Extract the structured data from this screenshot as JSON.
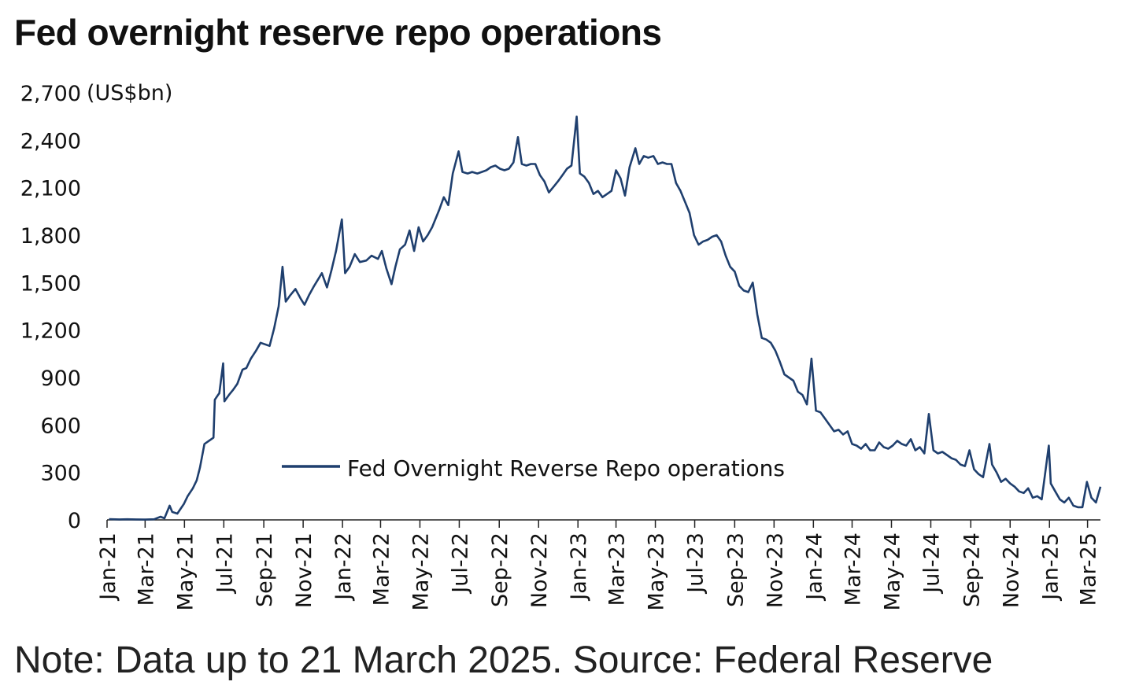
{
  "chart_data": {
    "type": "line",
    "title": "Fed overnight reserve repo operations",
    "ylabel": "(US$bn)",
    "ylim": [
      0,
      2700
    ],
    "yticks": [
      "0",
      "300",
      "600",
      "900",
      "1,200",
      "1,500",
      "1,800",
      "2,100",
      "2,400",
      "2,700"
    ],
    "xticks": [
      "Jan-21",
      "Mar-21",
      "May-21",
      "Jul-21",
      "Sep-21",
      "Nov-21",
      "Jan-22",
      "Mar-22",
      "May-22",
      "Jul-22",
      "Sep-22",
      "Nov-22",
      "Jan-23",
      "Mar-23",
      "May-23",
      "Jul-23",
      "Sep-23",
      "Nov-23",
      "Jan-24",
      "Mar-24",
      "May-24",
      "Jul-24",
      "Sep-24",
      "Nov-24",
      "Jan-25",
      "Mar-25"
    ],
    "grid": false,
    "legend_position": "center",
    "series": [
      {
        "name": "Fed Overnight Reverse Repo operations",
        "color": "#1f3f6e",
        "points": [
          [
            "2021-01-04",
            5
          ],
          [
            "2021-01-20",
            3
          ],
          [
            "2021-02-01",
            4
          ],
          [
            "2021-02-15",
            3
          ],
          [
            "2021-03-01",
            2
          ],
          [
            "2021-03-15",
            4
          ],
          [
            "2021-03-25",
            20
          ],
          [
            "2021-03-31",
            10
          ],
          [
            "2021-04-08",
            90
          ],
          [
            "2021-04-12",
            50
          ],
          [
            "2021-04-20",
            40
          ],
          [
            "2021-04-30",
            100
          ],
          [
            "2021-05-06",
            150
          ],
          [
            "2021-05-14",
            200
          ],
          [
            "2021-05-20",
            250
          ],
          [
            "2021-05-25",
            330
          ],
          [
            "2021-06-01",
            480
          ],
          [
            "2021-06-08",
            500
          ],
          [
            "2021-06-15",
            520
          ],
          [
            "2021-06-17",
            760
          ],
          [
            "2021-06-22",
            790
          ],
          [
            "2021-06-24",
            800
          ],
          [
            "2021-06-30",
            990
          ],
          [
            "2021-07-02",
            750
          ],
          [
            "2021-07-09",
            790
          ],
          [
            "2021-07-15",
            820
          ],
          [
            "2021-07-22",
            860
          ],
          [
            "2021-07-30",
            950
          ],
          [
            "2021-08-05",
            960
          ],
          [
            "2021-08-12",
            1020
          ],
          [
            "2021-08-20",
            1070
          ],
          [
            "2021-08-27",
            1120
          ],
          [
            "2021-09-03",
            1110
          ],
          [
            "2021-09-10",
            1100
          ],
          [
            "2021-09-17",
            1210
          ],
          [
            "2021-09-24",
            1350
          ],
          [
            "2021-09-30",
            1600
          ],
          [
            "2021-10-05",
            1380
          ],
          [
            "2021-10-12",
            1420
          ],
          [
            "2021-10-20",
            1460
          ],
          [
            "2021-10-28",
            1400
          ],
          [
            "2021-11-03",
            1360
          ],
          [
            "2021-11-10",
            1420
          ],
          [
            "2021-11-18",
            1480
          ],
          [
            "2021-11-30",
            1560
          ],
          [
            "2021-12-08",
            1470
          ],
          [
            "2021-12-15",
            1580
          ],
          [
            "2021-12-22",
            1700
          ],
          [
            "2021-12-31",
            1900
          ],
          [
            "2022-01-05",
            1560
          ],
          [
            "2022-01-12",
            1600
          ],
          [
            "2022-01-20",
            1680
          ],
          [
            "2022-01-28",
            1630
          ],
          [
            "2022-02-07",
            1640
          ],
          [
            "2022-02-15",
            1670
          ],
          [
            "2022-02-25",
            1650
          ],
          [
            "2022-03-03",
            1700
          ],
          [
            "2022-03-10",
            1590
          ],
          [
            "2022-03-18",
            1490
          ],
          [
            "2022-03-24",
            1600
          ],
          [
            "2022-03-31",
            1710
          ],
          [
            "2022-04-08",
            1740
          ],
          [
            "2022-04-15",
            1830
          ],
          [
            "2022-04-22",
            1700
          ],
          [
            "2022-04-29",
            1850
          ],
          [
            "2022-05-06",
            1760
          ],
          [
            "2022-05-13",
            1800
          ],
          [
            "2022-05-20",
            1850
          ],
          [
            "2022-05-31",
            1960
          ],
          [
            "2022-06-07",
            2040
          ],
          [
            "2022-06-14",
            1990
          ],
          [
            "2022-06-21",
            2190
          ],
          [
            "2022-06-30",
            2330
          ],
          [
            "2022-07-06",
            2200
          ],
          [
            "2022-07-14",
            2190
          ],
          [
            "2022-07-21",
            2200
          ],
          [
            "2022-07-29",
            2190
          ],
          [
            "2022-08-05",
            2200
          ],
          [
            "2022-08-12",
            2210
          ],
          [
            "2022-08-19",
            2230
          ],
          [
            "2022-08-26",
            2240
          ],
          [
            "2022-09-02",
            2220
          ],
          [
            "2022-09-09",
            2210
          ],
          [
            "2022-09-16",
            2220
          ],
          [
            "2022-09-23",
            2260
          ],
          [
            "2022-09-30",
            2420
          ],
          [
            "2022-10-06",
            2250
          ],
          [
            "2022-10-13",
            2240
          ],
          [
            "2022-10-20",
            2250
          ],
          [
            "2022-10-27",
            2250
          ],
          [
            "2022-11-03",
            2180
          ],
          [
            "2022-11-10",
            2140
          ],
          [
            "2022-11-17",
            2070
          ],
          [
            "2022-11-25",
            2110
          ],
          [
            "2022-12-01",
            2140
          ],
          [
            "2022-12-08",
            2180
          ],
          [
            "2022-12-15",
            2220
          ],
          [
            "2022-12-22",
            2240
          ],
          [
            "2022-12-30",
            2550
          ],
          [
            "2023-01-04",
            2190
          ],
          [
            "2023-01-11",
            2170
          ],
          [
            "2023-01-18",
            2130
          ],
          [
            "2023-01-25",
            2060
          ],
          [
            "2023-02-01",
            2080
          ],
          [
            "2023-02-08",
            2040
          ],
          [
            "2023-02-15",
            2060
          ],
          [
            "2023-02-22",
            2080
          ],
          [
            "2023-03-01",
            2210
          ],
          [
            "2023-03-08",
            2160
          ],
          [
            "2023-03-15",
            2050
          ],
          [
            "2023-03-22",
            2230
          ],
          [
            "2023-03-31",
            2350
          ],
          [
            "2023-04-06",
            2250
          ],
          [
            "2023-04-13",
            2300
          ],
          [
            "2023-04-20",
            2290
          ],
          [
            "2023-04-28",
            2300
          ],
          [
            "2023-05-05",
            2250
          ],
          [
            "2023-05-12",
            2260
          ],
          [
            "2023-05-19",
            2250
          ],
          [
            "2023-05-26",
            2250
          ],
          [
            "2023-06-02",
            2130
          ],
          [
            "2023-06-09",
            2080
          ],
          [
            "2023-06-16",
            2010
          ],
          [
            "2023-06-23",
            1940
          ],
          [
            "2023-06-30",
            1800
          ],
          [
            "2023-07-07",
            1740
          ],
          [
            "2023-07-14",
            1760
          ],
          [
            "2023-07-21",
            1770
          ],
          [
            "2023-07-28",
            1790
          ],
          [
            "2023-08-04",
            1800
          ],
          [
            "2023-08-11",
            1760
          ],
          [
            "2023-08-18",
            1670
          ],
          [
            "2023-08-25",
            1600
          ],
          [
            "2023-09-01",
            1570
          ],
          [
            "2023-09-08",
            1480
          ],
          [
            "2023-09-15",
            1450
          ],
          [
            "2023-09-22",
            1440
          ],
          [
            "2023-09-29",
            1500
          ],
          [
            "2023-10-06",
            1300
          ],
          [
            "2023-10-13",
            1150
          ],
          [
            "2023-10-20",
            1140
          ],
          [
            "2023-10-27",
            1120
          ],
          [
            "2023-11-03",
            1070
          ],
          [
            "2023-11-10",
            1000
          ],
          [
            "2023-11-17",
            920
          ],
          [
            "2023-11-24",
            900
          ],
          [
            "2023-12-01",
            880
          ],
          [
            "2023-12-08",
            810
          ],
          [
            "2023-12-15",
            790
          ],
          [
            "2023-12-22",
            730
          ],
          [
            "2023-12-29",
            1020
          ],
          [
            "2024-01-05",
            690
          ],
          [
            "2024-01-12",
            680
          ],
          [
            "2024-01-19",
            640
          ],
          [
            "2024-01-26",
            600
          ],
          [
            "2024-02-02",
            560
          ],
          [
            "2024-02-09",
            570
          ],
          [
            "2024-02-16",
            540
          ],
          [
            "2024-02-23",
            560
          ],
          [
            "2024-03-01",
            480
          ],
          [
            "2024-03-08",
            470
          ],
          [
            "2024-03-15",
            450
          ],
          [
            "2024-03-22",
            480
          ],
          [
            "2024-03-29",
            440
          ],
          [
            "2024-04-05",
            440
          ],
          [
            "2024-04-12",
            490
          ],
          [
            "2024-04-19",
            460
          ],
          [
            "2024-04-26",
            450
          ],
          [
            "2024-05-03",
            470
          ],
          [
            "2024-05-10",
            500
          ],
          [
            "2024-05-17",
            480
          ],
          [
            "2024-05-24",
            470
          ],
          [
            "2024-05-31",
            510
          ],
          [
            "2024-06-07",
            440
          ],
          [
            "2024-06-14",
            460
          ],
          [
            "2024-06-21",
            420
          ],
          [
            "2024-06-28",
            670
          ],
          [
            "2024-07-05",
            440
          ],
          [
            "2024-07-12",
            420
          ],
          [
            "2024-07-19",
            430
          ],
          [
            "2024-07-26",
            410
          ],
          [
            "2024-08-02",
            390
          ],
          [
            "2024-08-09",
            380
          ],
          [
            "2024-08-16",
            350
          ],
          [
            "2024-08-23",
            340
          ],
          [
            "2024-08-30",
            440
          ],
          [
            "2024-09-06",
            320
          ],
          [
            "2024-09-13",
            290
          ],
          [
            "2024-09-20",
            270
          ],
          [
            "2024-09-30",
            480
          ],
          [
            "2024-10-04",
            350
          ],
          [
            "2024-10-11",
            300
          ],
          [
            "2024-10-18",
            240
          ],
          [
            "2024-10-25",
            260
          ],
          [
            "2024-11-01",
            230
          ],
          [
            "2024-11-08",
            210
          ],
          [
            "2024-11-15",
            180
          ],
          [
            "2024-11-22",
            170
          ],
          [
            "2024-11-29",
            200
          ],
          [
            "2024-12-06",
            140
          ],
          [
            "2024-12-13",
            150
          ],
          [
            "2024-12-20",
            130
          ],
          [
            "2024-12-31",
            470
          ],
          [
            "2025-01-03",
            230
          ],
          [
            "2025-01-10",
            180
          ],
          [
            "2025-01-17",
            130
          ],
          [
            "2025-01-24",
            110
          ],
          [
            "2025-01-31",
            140
          ],
          [
            "2025-02-07",
            90
          ],
          [
            "2025-02-14",
            80
          ],
          [
            "2025-02-21",
            80
          ],
          [
            "2025-02-28",
            240
          ],
          [
            "2025-03-07",
            140
          ],
          [
            "2025-03-14",
            110
          ],
          [
            "2025-03-21",
            210
          ]
        ]
      }
    ]
  },
  "note": "Note: Data up to 21 March 2025. Source: Federal Reserve"
}
